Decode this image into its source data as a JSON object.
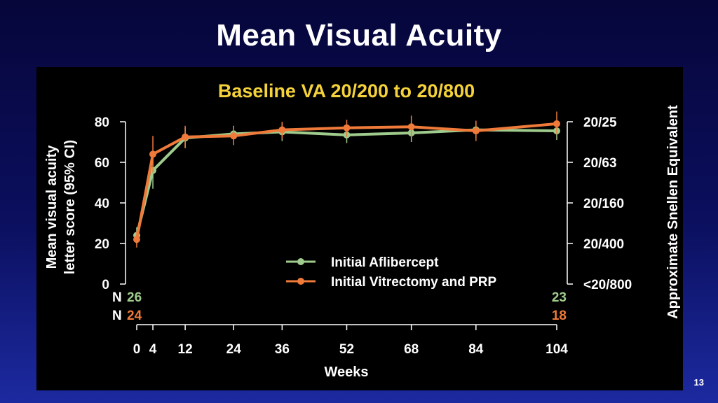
{
  "slide": {
    "title": "Mean Visual Acuity",
    "page_number": "13"
  },
  "colors": {
    "aflibercept": "#9fcb8c",
    "vitrectomy": "#ef7a3a",
    "title_yellow": "#f5d23a",
    "axis": "#ffffff",
    "text": "#ffffff"
  },
  "chart_data": {
    "type": "line",
    "title": "Baseline VA 20/200 to 20/800",
    "xlabel": "Weeks",
    "ylabel_line1": "Mean visual acuity",
    "ylabel_line2": "letter score (95% CI)",
    "right_ylabel": "Approximate Snellen Equivalent",
    "x_ticks": [
      0,
      4,
      12,
      24,
      36,
      52,
      68,
      84,
      104
    ],
    "y_ticks": [
      0,
      20,
      40,
      60,
      80
    ],
    "right_ticks": [
      {
        "y": 80,
        "label": "20/25"
      },
      {
        "y": 60,
        "label": "20/63"
      },
      {
        "y": 40,
        "label": "20/160"
      },
      {
        "y": 20,
        "label": "20/400"
      },
      {
        "y": 0,
        "label": "<20/800"
      }
    ],
    "xlim": [
      0,
      104
    ],
    "ylim": [
      0,
      80
    ],
    "legend_position": "bottom-center",
    "series": [
      {
        "name": "Initial Aflibercept",
        "color_key": "aflibercept",
        "x": [
          0,
          4,
          12,
          24,
          36,
          52,
          68,
          84,
          104
        ],
        "y": [
          24,
          56,
          72,
          74,
          75,
          73.5,
          74.5,
          76,
          75.5
        ],
        "ci_low": [
          20,
          47,
          67,
          70,
          70.5,
          69.5,
          70,
          72,
          71
        ],
        "ci_high": [
          28,
          64,
          77,
          78,
          79.5,
          78,
          79,
          80,
          80
        ],
        "n_label": "N",
        "n_start": "26",
        "n_end": "23"
      },
      {
        "name": "Initial Vitrectomy and PRP",
        "color_key": "vitrectomy",
        "x": [
          0,
          4,
          12,
          24,
          36,
          52,
          68,
          84,
          104
        ],
        "y": [
          22,
          64,
          72.5,
          73,
          76,
          77,
          77.5,
          75.5,
          79
        ],
        "ci_low": [
          18,
          55,
          67,
          68.5,
          71.5,
          72.5,
          72.5,
          70.5,
          74
        ],
        "ci_high": [
          26,
          73,
          78,
          77.5,
          80,
          81,
          83,
          80.5,
          85
        ],
        "n_label": "N",
        "n_start": "24",
        "n_end": "18"
      }
    ]
  }
}
